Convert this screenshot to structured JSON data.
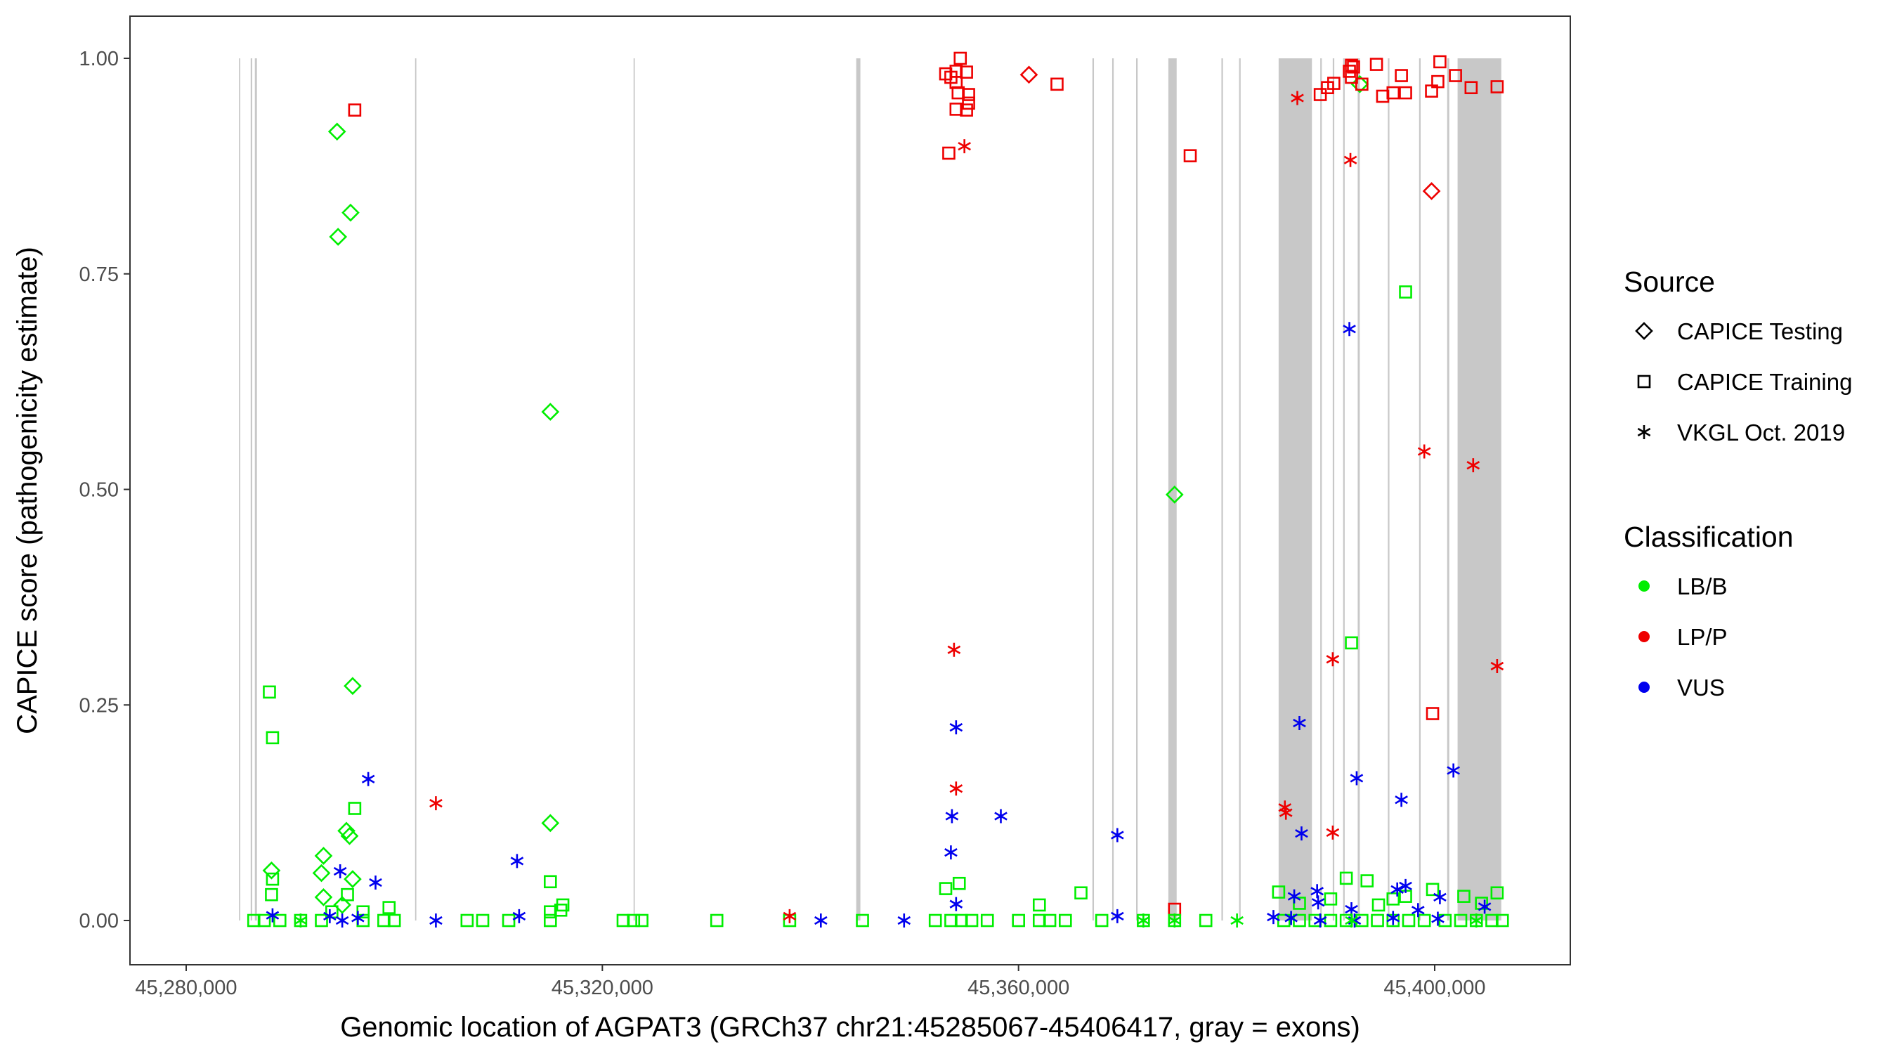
{
  "chart_data": {
    "type": "scatter",
    "title": "",
    "xlabel": "Genomic location of AGPAT3 (GRCh37 chr21:45285067-45406417, gray = exons)",
    "ylabel": "CAPICE score (pathogenicity estimate)",
    "xlim": [
      45274000,
      45412000
    ],
    "ylim": [
      -0.05,
      1.05
    ],
    "grid": false,
    "x_ticks": [
      45280000,
      45320000,
      45360000,
      45400000
    ],
    "x_tick_labels": [
      "45,280,000",
      "45,320,000",
      "45,360,000",
      "45,400,000"
    ],
    "y_ticks": [
      0,
      0.25,
      0.5,
      0.75,
      1
    ],
    "y_tick_labels": [
      "0.00",
      "0.25",
      "0.50",
      "0.75",
      "1.00"
    ],
    "legend_placement": "right",
    "legend": {
      "source_title": "Source",
      "source_items": [
        {
          "label": "CAPICE Testing",
          "shape": "diamond"
        },
        {
          "label": "CAPICE Training",
          "shape": "square"
        },
        {
          "label": "VKGL Oct. 2019",
          "shape": "asterisk"
        }
      ],
      "class_title": "Classification",
      "class_items": [
        {
          "label": "LB/B",
          "color": "#00ee00"
        },
        {
          "label": "LP/P",
          "color": "#ee0000"
        },
        {
          "label": "VUS",
          "color": "#0000ee"
        }
      ]
    },
    "exon_color": "#c8c8c8",
    "exons": [
      [
        45285080,
        45285200
      ],
      [
        45286200,
        45286350
      ],
      [
        45286600,
        45286800
      ],
      [
        45302000,
        45302120
      ],
      [
        45323000,
        45323120
      ],
      [
        45344400,
        45344800
      ],
      [
        45367100,
        45367250
      ],
      [
        45369000,
        45369150
      ],
      [
        45371300,
        45371450
      ],
      [
        45374400,
        45375200
      ],
      [
        45379500,
        45379650
      ],
      [
        45381200,
        45381350
      ],
      [
        45385000,
        45388200
      ],
      [
        45389000,
        45389150
      ],
      [
        45390200,
        45390350
      ],
      [
        45391200,
        45391350
      ],
      [
        45392600,
        45392800
      ],
      [
        45395500,
        45395650
      ],
      [
        45398500,
        45398650
      ],
      [
        45401200,
        45401400
      ],
      [
        45402200,
        45406400
      ]
    ],
    "series": [
      {
        "name": "CAPICE Testing",
        "shape": "diamond",
        "points": [
          [
            45294500,
            0.915,
            "LB/B"
          ],
          [
            45295800,
            0.821,
            "LB/B"
          ],
          [
            45294600,
            0.793,
            "LB/B"
          ],
          [
            45315000,
            0.59,
            "LB/B"
          ],
          [
            45296000,
            0.272,
            "LB/B"
          ],
          [
            45315000,
            0.113,
            "LB/B"
          ],
          [
            45295400,
            0.104,
            "LB/B"
          ],
          [
            45295700,
            0.098,
            "LB/B"
          ],
          [
            45293200,
            0.075,
            "LB/B"
          ],
          [
            45288200,
            0.058,
            "LB/B"
          ],
          [
            45293000,
            0.055,
            "LB/B"
          ],
          [
            45296000,
            0.048,
            "LB/B"
          ],
          [
            45293200,
            0.027,
            "LB/B"
          ],
          [
            45295000,
            0.018,
            "LB/B"
          ],
          [
            45361000,
            0.981,
            "LP/P"
          ],
          [
            45399700,
            0.846,
            "LP/P"
          ],
          [
            45375000,
            0.494,
            "LB/B"
          ],
          [
            45392800,
            0.97,
            "LB/B"
          ]
        ]
      },
      {
        "name": "CAPICE Training",
        "shape": "square",
        "points": [
          [
            45296200,
            0.94,
            "LP/P"
          ],
          [
            45288000,
            0.265,
            "LB/B"
          ],
          [
            45288300,
            0.212,
            "LB/B"
          ],
          [
            45296200,
            0.13,
            "LB/B"
          ],
          [
            45288300,
            0.048,
            "LB/B"
          ],
          [
            45288200,
            0.03,
            "LB/B"
          ],
          [
            45315000,
            0.045,
            "LB/B"
          ],
          [
            45316200,
            0.018,
            "LB/B"
          ],
          [
            45316000,
            0.012,
            "LB/B"
          ],
          [
            45315000,
            0.01,
            "LB/B"
          ],
          [
            45299500,
            0.015,
            "LB/B"
          ],
          [
            45297000,
            0.01,
            "LB/B"
          ],
          [
            45295500,
            0.03,
            "LB/B"
          ],
          [
            45294000,
            0.01,
            "LB/B"
          ],
          [
            45353000,
            0.982,
            "LP/P"
          ],
          [
            45353500,
            0.978,
            "LP/P"
          ],
          [
            45354000,
            0.985,
            "LP/P"
          ],
          [
            45354400,
            1.0,
            "LP/P"
          ],
          [
            45355000,
            0.984,
            "LP/P"
          ],
          [
            45354000,
            0.972,
            "LP/P"
          ],
          [
            45354200,
            0.96,
            "LP/P"
          ],
          [
            45355200,
            0.958,
            "LP/P"
          ],
          [
            45354000,
            0.941,
            "LP/P"
          ],
          [
            45355000,
            0.94,
            "LP/P"
          ],
          [
            45355200,
            0.948,
            "LP/P"
          ],
          [
            45353300,
            0.89,
            "LP/P"
          ],
          [
            45363700,
            0.97,
            "LP/P"
          ],
          [
            45376500,
            0.887,
            "LP/P"
          ],
          [
            45389000,
            0.958,
            "LP/P"
          ],
          [
            45389700,
            0.966,
            "LP/P"
          ],
          [
            45390300,
            0.971,
            "LP/P"
          ],
          [
            45391800,
            0.985,
            "LP/P"
          ],
          [
            45392000,
            0.992,
            "LP/P"
          ],
          [
            45392200,
            0.99,
            "LP/P"
          ],
          [
            45392000,
            0.978,
            "LP/P"
          ],
          [
            45393000,
            0.97,
            "LP/P"
          ],
          [
            45394400,
            0.993,
            "LP/P"
          ],
          [
            45395000,
            0.956,
            "LP/P"
          ],
          [
            45396000,
            0.96,
            "LP/P"
          ],
          [
            45396800,
            0.98,
            "LP/P"
          ],
          [
            45397200,
            0.96,
            "LP/P"
          ],
          [
            45399700,
            0.962,
            "LP/P"
          ],
          [
            45400500,
            0.996,
            "LP/P"
          ],
          [
            45400300,
            0.973,
            "LP/P"
          ],
          [
            45402000,
            0.98,
            "LP/P"
          ],
          [
            45403500,
            0.966,
            "LP/P"
          ],
          [
            45406000,
            0.967,
            "LP/P"
          ],
          [
            45397200,
            0.729,
            "LB/B"
          ],
          [
            45392000,
            0.322,
            "LB/B"
          ],
          [
            45399800,
            0.24,
            "LP/P"
          ],
          [
            45375000,
            0.013,
            "LP/P"
          ],
          [
            45353000,
            0.037,
            "LB/B"
          ],
          [
            45354300,
            0.043,
            "LB/B"
          ],
          [
            45362000,
            0.018,
            "LB/B"
          ],
          [
            45366000,
            0.032,
            "LB/B"
          ],
          [
            45385000,
            0.033,
            "LB/B"
          ],
          [
            45387000,
            0.02,
            "LB/B"
          ],
          [
            45390000,
            0.025,
            "LB/B"
          ],
          [
            45391500,
            0.049,
            "LB/B"
          ],
          [
            45393500,
            0.046,
            "LB/B"
          ],
          [
            45394600,
            0.018,
            "LB/B"
          ],
          [
            45396000,
            0.025,
            "LB/B"
          ],
          [
            45397200,
            0.028,
            "LB/B"
          ],
          [
            45399800,
            0.036,
            "LB/B"
          ],
          [
            45402800,
            0.028,
            "LB/B"
          ],
          [
            45406000,
            0.032,
            "LB/B"
          ],
          [
            45404500,
            0.02,
            "LB/B"
          ],
          [
            45286500,
            0.0,
            "LB/B"
          ],
          [
            45287500,
            0.0,
            "LB/B"
          ],
          [
            45289000,
            0.0,
            "LB/B"
          ],
          [
            45291000,
            0.0,
            "LB/B"
          ],
          [
            45293000,
            0.0,
            "LB/B"
          ],
          [
            45297000,
            0.0,
            "LB/B"
          ],
          [
            45299000,
            0.0,
            "LB/B"
          ],
          [
            45300000,
            0.0,
            "LB/B"
          ],
          [
            45307000,
            0.0,
            "LB/B"
          ],
          [
            45308500,
            0.0,
            "LB/B"
          ],
          [
            45311000,
            0.0,
            "LB/B"
          ],
          [
            45315000,
            0.0,
            "LB/B"
          ],
          [
            45322000,
            0.0,
            "LB/B"
          ],
          [
            45323000,
            0.0,
            "LB/B"
          ],
          [
            45323800,
            0.0,
            "LB/B"
          ],
          [
            45331000,
            0.0,
            "LB/B"
          ],
          [
            45338000,
            0.0,
            "LB/B"
          ],
          [
            45345000,
            0.0,
            "LB/B"
          ],
          [
            45352000,
            0.0,
            "LB/B"
          ],
          [
            45353500,
            0.0,
            "LB/B"
          ],
          [
            45354500,
            0.0,
            "LB/B"
          ],
          [
            45355500,
            0.0,
            "LB/B"
          ],
          [
            45357000,
            0.0,
            "LB/B"
          ],
          [
            45360000,
            0.0,
            "LB/B"
          ],
          [
            45362000,
            0.0,
            "LB/B"
          ],
          [
            45363000,
            0.0,
            "LB/B"
          ],
          [
            45364500,
            0.0,
            "LB/B"
          ],
          [
            45368000,
            0.0,
            "LB/B"
          ],
          [
            45372000,
            0.0,
            "LB/B"
          ],
          [
            45375000,
            0.0,
            "LB/B"
          ],
          [
            45378000,
            0.0,
            "LB/B"
          ],
          [
            45385500,
            0.0,
            "LB/B"
          ],
          [
            45387000,
            0.0,
            "LB/B"
          ],
          [
            45388500,
            0.0,
            "LB/B"
          ],
          [
            45390000,
            0.0,
            "LB/B"
          ],
          [
            45391500,
            0.0,
            "LB/B"
          ],
          [
            45393000,
            0.0,
            "LB/B"
          ],
          [
            45394500,
            0.0,
            "LB/B"
          ],
          [
            45396000,
            0.0,
            "LB/B"
          ],
          [
            45397500,
            0.0,
            "LB/B"
          ],
          [
            45399000,
            0.0,
            "LB/B"
          ],
          [
            45401000,
            0.0,
            "LB/B"
          ],
          [
            45402500,
            0.0,
            "LB/B"
          ],
          [
            45404000,
            0.0,
            "LB/B"
          ],
          [
            45405500,
            0.0,
            "LB/B"
          ],
          [
            45406500,
            0.0,
            "LB/B"
          ]
        ]
      },
      {
        "name": "VKGL Oct. 2019",
        "shape": "asterisk",
        "points": [
          [
            45354800,
            0.898,
            "LP/P"
          ],
          [
            45386800,
            0.954,
            "LP/P"
          ],
          [
            45391900,
            0.882,
            "LP/P"
          ],
          [
            45391800,
            0.686,
            "VUS"
          ],
          [
            45399000,
            0.544,
            "LP/P"
          ],
          [
            45403700,
            0.528,
            "LP/P"
          ],
          [
            45353800,
            0.314,
            "LP/P"
          ],
          [
            45390200,
            0.303,
            "LP/P"
          ],
          [
            45406000,
            0.295,
            "LP/P"
          ],
          [
            45387000,
            0.229,
            "VUS"
          ],
          [
            45354000,
            0.224,
            "VUS"
          ],
          [
            45392500,
            0.165,
            "VUS"
          ],
          [
            45297500,
            0.164,
            "VUS"
          ],
          [
            45401800,
            0.174,
            "VUS"
          ],
          [
            45396800,
            0.14,
            "VUS"
          ],
          [
            45304000,
            0.136,
            "LP/P"
          ],
          [
            45354000,
            0.153,
            "LP/P"
          ],
          [
            45385600,
            0.131,
            "LP/P"
          ],
          [
            45385700,
            0.125,
            "LP/P"
          ],
          [
            45353600,
            0.121,
            "VUS"
          ],
          [
            45358300,
            0.121,
            "VUS"
          ],
          [
            45390200,
            0.102,
            "LP/P"
          ],
          [
            45387200,
            0.101,
            "VUS"
          ],
          [
            45369500,
            0.099,
            "VUS"
          ],
          [
            45353500,
            0.079,
            "VUS"
          ],
          [
            45311800,
            0.069,
            "VUS"
          ],
          [
            45294800,
            0.057,
            "VUS"
          ],
          [
            45298200,
            0.044,
            "VUS"
          ],
          [
            45397200,
            0.04,
            "VUS"
          ],
          [
            45396400,
            0.036,
            "VUS"
          ],
          [
            45388700,
            0.034,
            "VUS"
          ],
          [
            45386500,
            0.028,
            "VUS"
          ],
          [
            45400500,
            0.027,
            "VUS"
          ],
          [
            45388800,
            0.021,
            "VUS"
          ],
          [
            45354000,
            0.019,
            "VUS"
          ],
          [
            45404800,
            0.016,
            "VUS"
          ],
          [
            45392000,
            0.013,
            "VUS"
          ],
          [
            45398400,
            0.012,
            "VUS"
          ],
          [
            45288300,
            0.006,
            "VUS"
          ],
          [
            45293800,
            0.005,
            "VUS"
          ],
          [
            45296500,
            0.003,
            "VUS"
          ],
          [
            45312000,
            0.005,
            "VUS"
          ],
          [
            45304000,
            0.0,
            "VUS"
          ],
          [
            45338000,
            0.005,
            "LP/P"
          ],
          [
            45341000,
            0.0,
            "VUS"
          ],
          [
            45349000,
            0.0,
            "VUS"
          ],
          [
            45369500,
            0.005,
            "VUS"
          ],
          [
            45384500,
            0.004,
            "VUS"
          ],
          [
            45386200,
            0.003,
            "VUS"
          ],
          [
            45389000,
            0.0,
            "VUS"
          ],
          [
            45392300,
            0.0,
            "VUS"
          ],
          [
            45396000,
            0.003,
            "VUS"
          ],
          [
            45400300,
            0.002,
            "VUS"
          ],
          [
            45381000,
            0.0,
            "LB/B"
          ],
          [
            45295000,
            0.0,
            "VUS"
          ],
          [
            45291000,
            0.0,
            "LB/B"
          ],
          [
            45372000,
            0.0,
            "LB/B"
          ],
          [
            45375000,
            0.0,
            "LB/B"
          ],
          [
            45392000,
            0.0,
            "LB/B"
          ],
          [
            45404000,
            0.0,
            "LB/B"
          ]
        ]
      }
    ]
  }
}
